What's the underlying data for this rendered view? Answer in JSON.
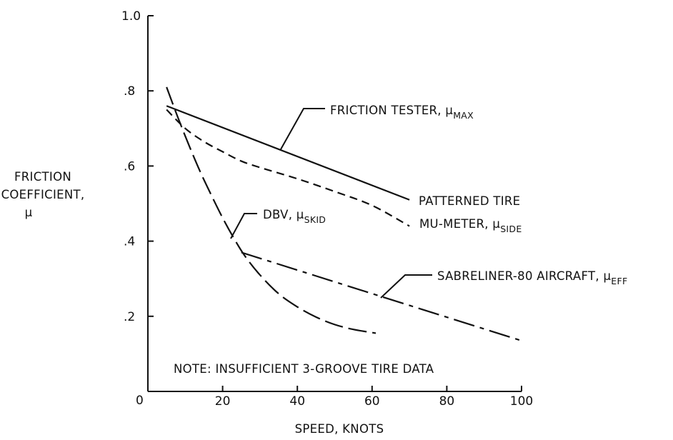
{
  "chart_data": {
    "type": "line",
    "title": "",
    "xlabel": "SPEED, KNOTS",
    "ylabel": [
      "FRICTION",
      "COEFFICIENT,",
      "μ"
    ],
    "xlim": [
      0,
      100
    ],
    "ylim": [
      0,
      1.0
    ],
    "x_ticks": [
      "20",
      "40",
      "60",
      "80",
      "100"
    ],
    "y_ticks": [
      "0",
      ".2",
      ".4",
      ".6",
      ".8",
      "1.0"
    ],
    "grid": false,
    "note": "NOTE:  INSUFFICIENT 3-GROOVE TIRE DATA",
    "series": [
      {
        "name": "FRICTION TESTER, μMAX",
        "label_main": "FRICTION TESTER, μ",
        "label_sub": "MAX",
        "style": "solid",
        "x": [
          5,
          70
        ],
        "y": [
          0.76,
          0.51
        ]
      },
      {
        "name": "MU-METER, μSIDE",
        "label_main": "MU-METER, μ",
        "label_sub": "SIDE",
        "style": "dashed",
        "x": [
          5,
          10,
          15,
          20,
          25,
          30,
          40,
          50,
          60,
          70
        ],
        "y": [
          0.75,
          0.7,
          0.665,
          0.638,
          0.613,
          0.596,
          0.566,
          0.532,
          0.495,
          0.44
        ]
      },
      {
        "name": "DBV, μSKID",
        "label_main": "DBV, μ",
        "label_sub": "SKID",
        "style": "long-dash",
        "x": [
          5,
          8,
          11,
          14,
          17,
          20,
          23,
          26,
          30,
          35,
          40,
          45,
          50,
          55,
          61
        ],
        "y": [
          0.81,
          0.73,
          0.655,
          0.585,
          0.522,
          0.462,
          0.408,
          0.36,
          0.31,
          0.26,
          0.225,
          0.198,
          0.178,
          0.165,
          0.155
        ]
      },
      {
        "name": "SABRELINER-80 AIRCRAFT, μEFF",
        "label_main": "SABRELINER-80 AIRCRAFT, μ",
        "label_sub": "EFF",
        "style": "dash-dot",
        "x": [
          25,
          100
        ],
        "y": [
          0.37,
          0.135
        ]
      }
    ],
    "annotations": [
      {
        "text": "PATTERNED TIRE"
      }
    ]
  }
}
